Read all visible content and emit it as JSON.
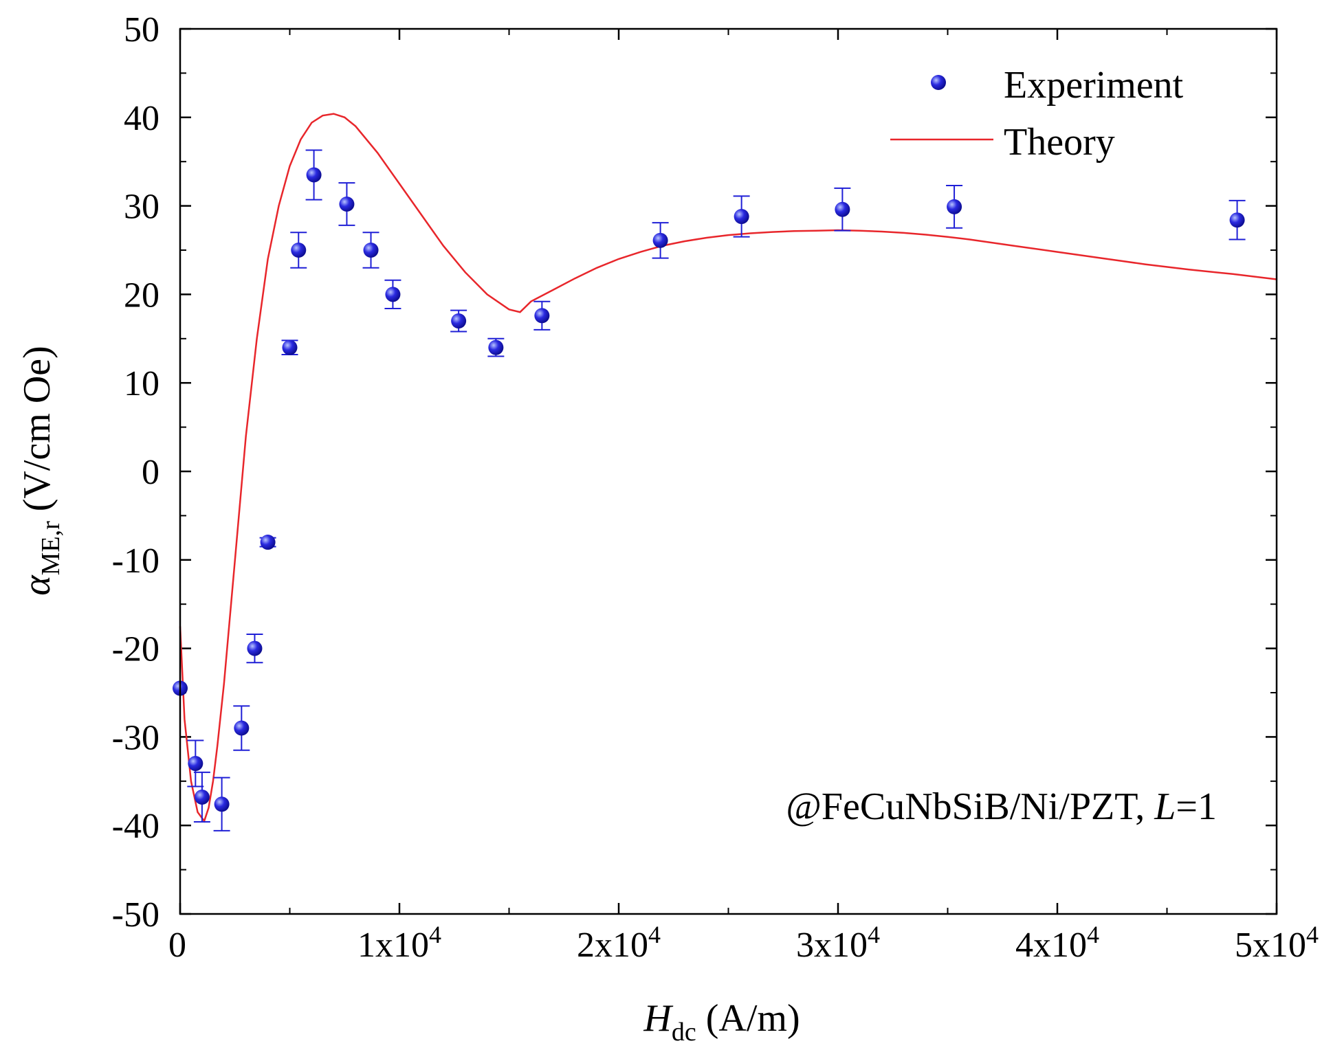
{
  "chart_data": {
    "type": "scatter",
    "title": "",
    "xlabel": {
      "main": "H",
      "sub": "dc",
      "unit": " (A/m)"
    },
    "ylabel": {
      "main": "α",
      "sub": "ME,r",
      "unit": " (V/cm Oe)"
    },
    "xlim": [
      0,
      50000
    ],
    "ylim": [
      -50,
      50
    ],
    "xticks": [
      0,
      10000,
      20000,
      30000,
      40000,
      50000
    ],
    "xtick_labels": [
      "0",
      "1x10",
      "2x10",
      "3x10",
      "4x10",
      "5x10"
    ],
    "xtick_exponents": [
      "",
      "4",
      "4",
      "4",
      "4",
      "4"
    ],
    "yticks": [
      -50,
      -40,
      -30,
      -20,
      -10,
      0,
      10,
      20,
      30,
      40,
      50
    ],
    "ytick_labels": [
      "-50",
      "-40",
      "-30",
      "-20",
      "-10",
      "0",
      "10",
      "20",
      "30",
      "40",
      "50"
    ],
    "legend_position": "top-right",
    "colors": {
      "experiment": "#1f1fd6",
      "theory": "#e8262b",
      "axis": "#000000"
    },
    "series": [
      {
        "name": "Experiment",
        "kind": "scatter-errorbar",
        "points": [
          {
            "x": 0,
            "y": -24.5,
            "err": 0
          },
          {
            "x": 700,
            "y": -33,
            "err": 2.6
          },
          {
            "x": 1000,
            "y": -36.8,
            "err": 2.8
          },
          {
            "x": 1900,
            "y": -37.6,
            "err": 3
          },
          {
            "x": 2800,
            "y": -29,
            "err": 2.5
          },
          {
            "x": 3400,
            "y": -20,
            "err": 1.6
          },
          {
            "x": 4000,
            "y": -8,
            "err": 0.5
          },
          {
            "x": 5000,
            "y": 14,
            "err": 0.8
          },
          {
            "x": 5400,
            "y": 25,
            "err": 2
          },
          {
            "x": 6100,
            "y": 33.5,
            "err": 2.8
          },
          {
            "x": 7600,
            "y": 30.2,
            "err": 2.4
          },
          {
            "x": 8700,
            "y": 25,
            "err": 2
          },
          {
            "x": 9700,
            "y": 20,
            "err": 1.6
          },
          {
            "x": 12700,
            "y": 17,
            "err": 1.2
          },
          {
            "x": 14400,
            "y": 14,
            "err": 1
          },
          {
            "x": 16500,
            "y": 17.6,
            "err": 1.6
          },
          {
            "x": 21900,
            "y": 26.1,
            "err": 2
          },
          {
            "x": 25600,
            "y": 28.8,
            "err": 2.3
          },
          {
            "x": 30200,
            "y": 29.6,
            "err": 2.4
          },
          {
            "x": 35300,
            "y": 29.9,
            "err": 2.4
          },
          {
            "x": 48200,
            "y": 28.4,
            "err": 2.2
          }
        ]
      },
      {
        "name": "Theory",
        "kind": "line",
        "x": [
          0,
          200,
          500,
          800,
          1100,
          1300,
          1500,
          1700,
          2000,
          2500,
          3000,
          3500,
          4000,
          4500,
          5000,
          5500,
          6000,
          6500,
          7000,
          7500,
          8000,
          9000,
          10000,
          11000,
          12000,
          13000,
          14000,
          15000,
          15500,
          16000,
          17000,
          18000,
          19000,
          20000,
          21000,
          22000,
          23000,
          24000,
          25000,
          26000,
          27000,
          28000,
          29000,
          30000,
          31000,
          32000,
          33000,
          34000,
          35000,
          36000,
          38000,
          40000,
          42000,
          44000,
          46000,
          48000,
          50000
        ],
        "y": [
          -17.5,
          -28,
          -35,
          -38.5,
          -39.5,
          -38,
          -35,
          -31,
          -24,
          -10,
          4,
          15,
          24,
          30,
          34.5,
          37.5,
          39.4,
          40.2,
          40.4,
          40,
          39,
          36,
          32.5,
          29,
          25.5,
          22.5,
          20,
          18.3,
          18,
          19.2,
          20.5,
          21.8,
          23,
          24,
          24.8,
          25.5,
          26,
          26.4,
          26.7,
          26.9,
          27.05,
          27.15,
          27.2,
          27.25,
          27.2,
          27.1,
          26.95,
          26.75,
          26.5,
          26.2,
          25.5,
          24.8,
          24.1,
          23.4,
          22.8,
          22.3,
          21.7
        ]
      }
    ],
    "annotation": {
      "prefix": "@FeCuNbSiB/Ni/PZT, ",
      "italic": "L",
      "suffix": "=1"
    }
  }
}
